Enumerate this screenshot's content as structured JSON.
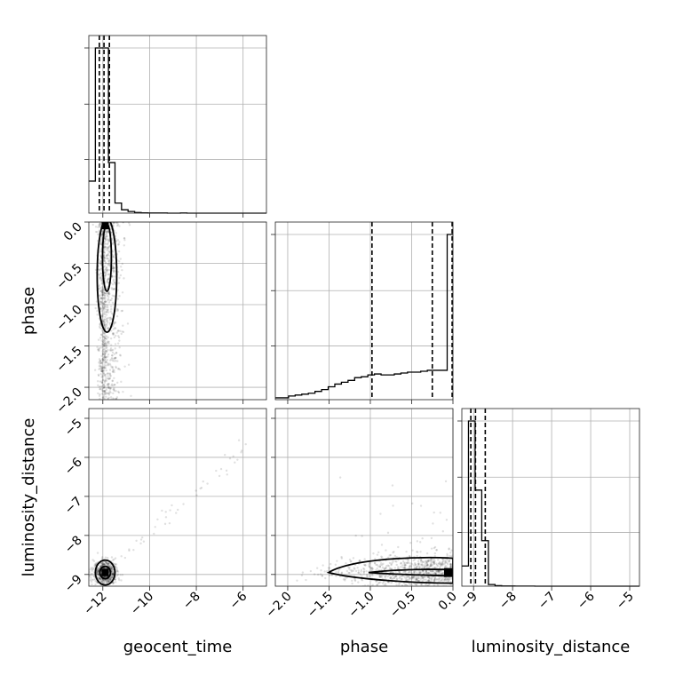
{
  "chart_data": {
    "type": "corner",
    "parameters": [
      "geocent_time",
      "phase",
      "luminosity_distance"
    ],
    "axis_labels": {
      "geocent_time": "geocent_time",
      "phase": "phase",
      "luminosity_distance": "luminosity_distance"
    },
    "ranges": {
      "geocent_time": [
        -12.6,
        -5.0
      ],
      "phase": [
        -2.15,
        0.0
      ],
      "luminosity_distance": [
        -9.3,
        -4.75
      ]
    },
    "ticks": {
      "geocent_time": [
        -12,
        -10,
        -8,
        -6
      ],
      "phase": [
        -2.0,
        -1.5,
        -1.0,
        -0.5,
        0.0
      ],
      "luminosity_distance": [
        -9,
        -8,
        -7,
        -6,
        -5
      ]
    },
    "tick_labels": {
      "geocent_time": [
        "−12",
        "−10",
        "−8",
        "−6"
      ],
      "phase": [
        "−2.0",
        "−1.5",
        "−1.0",
        "−0.5",
        "0.0"
      ],
      "luminosity_distance": [
        "−9",
        "−8",
        "−7",
        "−6",
        "−5"
      ]
    },
    "quantiles": {
      "geocent_time": [
        -12.15,
        -11.95,
        -11.72
      ],
      "phase": [
        -0.98,
        -0.25,
        -0.01
      ],
      "luminosity_distance": [
        -9.07,
        -8.95,
        -8.7
      ]
    },
    "histograms": {
      "geocent_time": {
        "edges": [
          -12.6,
          -12.32,
          -12.04,
          -11.76,
          -11.48,
          -11.2,
          -10.92,
          -10.64,
          -10.36,
          -10.08,
          -9.8,
          -9.52,
          -9.24,
          -8.96,
          -8.68,
          -8.4,
          -8.12,
          -7.84,
          -7.56,
          -7.28,
          -7.0,
          -6.72,
          -6.44,
          -6.16,
          -5.88,
          -5.6,
          -5.32,
          -5.0
        ],
        "counts": [
          0.19,
          0.98,
          0.98,
          0.3,
          0.06,
          0.02,
          0.01,
          0.004,
          0.002,
          0.001,
          0.001,
          0.001,
          0,
          0,
          0.001,
          0,
          0,
          0,
          0,
          0,
          0,
          0,
          0,
          0,
          0,
          0,
          0
        ]
      },
      "phase": {
        "edges": [
          -2.15,
          -2.07,
          -1.99,
          -1.91,
          -1.83,
          -1.75,
          -1.67,
          -1.59,
          -1.51,
          -1.43,
          -1.35,
          -1.27,
          -1.19,
          -1.11,
          -1.03,
          -0.95,
          -0.87,
          -0.79,
          -0.71,
          -0.63,
          -0.55,
          -0.47,
          -0.39,
          -0.31,
          -0.23,
          -0.15,
          -0.07,
          0.0
        ],
        "counts": [
          0.01,
          0.01,
          0.02,
          0.025,
          0.03,
          0.035,
          0.045,
          0.055,
          0.07,
          0.085,
          0.095,
          0.105,
          0.12,
          0.125,
          0.135,
          0.14,
          0.135,
          0.135,
          0.14,
          0.145,
          0.15,
          0.15,
          0.155,
          0.16,
          0.16,
          0.16,
          0.9
        ]
      },
      "luminosity_distance": {
        "edges": [
          -9.3,
          -9.13,
          -8.96,
          -8.79,
          -8.62,
          -8.45,
          -8.28,
          -8.11,
          -7.94,
          -7.77,
          -7.6,
          -7.43,
          -7.26,
          -7.09,
          -6.92,
          -6.75,
          -6.58,
          -6.41,
          -6.24,
          -6.07,
          -5.9,
          -5.73,
          -5.56,
          -5.39,
          -5.22,
          -5.05,
          -4.88,
          -4.75
        ],
        "counts": [
          0.12,
          0.98,
          0.57,
          0.27,
          0.01,
          0.003,
          0.001,
          0.001,
          0.0005,
          0.0005,
          0.0005,
          0,
          0,
          0,
          0,
          0,
          0,
          0,
          0,
          0,
          0,
          0,
          0,
          0,
          0,
          0,
          0
        ]
      }
    },
    "scatter_points": [
      {
        "x": "geocent_time",
        "y": "phase",
        "n": 1000,
        "center": [
          -11.9,
          -0.6
        ],
        "spread": [
          0.25,
          0.55
        ]
      },
      {
        "x": "geocent_time",
        "y": "luminosity_distance",
        "n": 700,
        "center": [
          -11.9,
          -8.95
        ],
        "spread": [
          0.25,
          0.15
        ]
      },
      {
        "x": "phase",
        "y": "luminosity_distance",
        "n": 900,
        "center": [
          -0.7,
          -8.95
        ],
        "spread": [
          0.5,
          0.15
        ]
      }
    ],
    "grid": true,
    "legend": "none"
  }
}
